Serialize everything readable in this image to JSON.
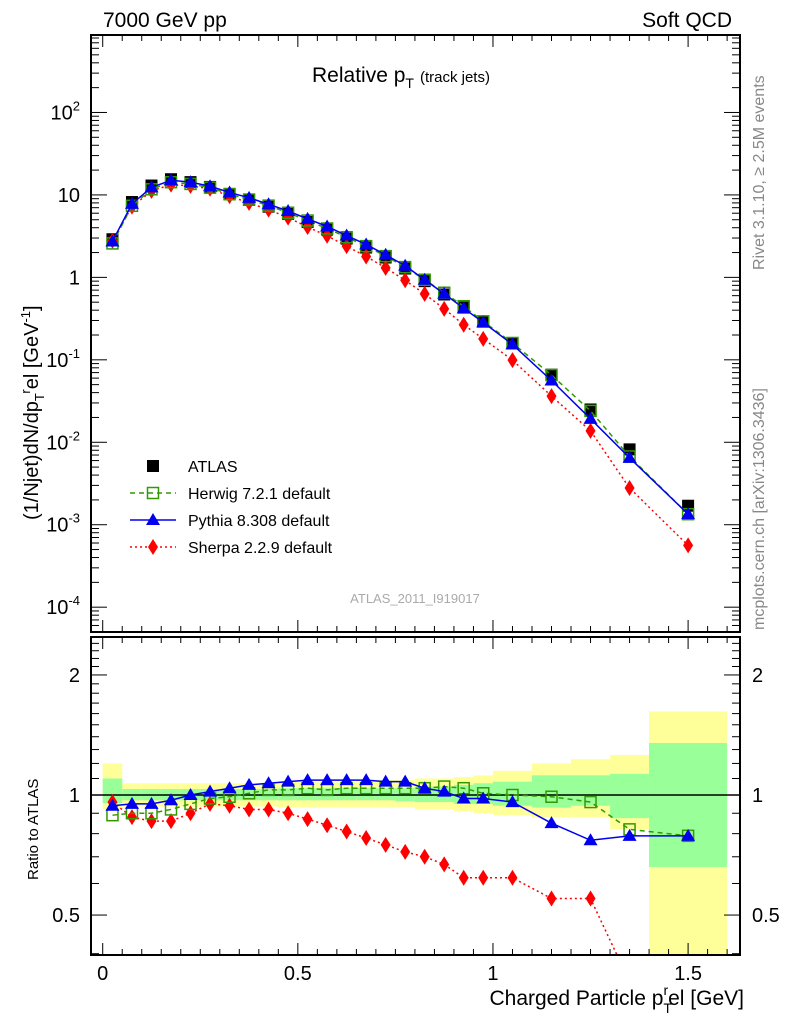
{
  "header": {
    "left": "7000 GeV pp",
    "right": "Soft QCD"
  },
  "side_text": {
    "top": "Rivet 3.1.10, ≥ 2.5M events",
    "bottom": "mcplots.cern.ch [arXiv:1306.3436]"
  },
  "watermark": "ATLAS_2011_I919017",
  "chart_data": [
    {
      "type": "line",
      "title": "Relative p_T (track jets)",
      "title_main": "Relative p",
      "title_sub": "T",
      "title_note": "(track jets)",
      "ylabel": "(1/Njet)dN/dp_T^rel [GeV^-1]",
      "yscale": "log",
      "ylim": [
        5e-05,
        870
      ],
      "xlim": [
        -0.03,
        1.633
      ],
      "yticks": [
        {
          "v": 0.0001,
          "base": "10",
          "exp": "-4"
        },
        {
          "v": 0.001,
          "base": "10",
          "exp": "-3"
        },
        {
          "v": 0.01,
          "base": "10",
          "exp": "-2"
        },
        {
          "v": 0.1,
          "base": "10",
          "exp": "-1"
        },
        {
          "v": 1,
          "base": "1",
          "exp": ""
        },
        {
          "v": 10,
          "base": "10",
          "exp": ""
        },
        {
          "v": 100,
          "base": "10",
          "exp": "2"
        }
      ],
      "legend_placement": "center-left",
      "x": [
        0.025,
        0.075,
        0.125,
        0.175,
        0.225,
        0.275,
        0.325,
        0.375,
        0.425,
        0.475,
        0.525,
        0.575,
        0.625,
        0.675,
        0.725,
        0.775,
        0.825,
        0.875,
        0.925,
        0.975,
        1.05,
        1.15,
        1.25,
        1.35,
        1.5
      ],
      "series": [
        {
          "name": "ATLAS",
          "color": "#000000",
          "marker": "square",
          "values": [
            2.9,
            8.2,
            13,
            15.5,
            14.3,
            12.5,
            10.3,
            8.7,
            7.2,
            5.9,
            4.7,
            3.8,
            2.95,
            2.3,
            1.74,
            1.28,
            0.9,
            0.62,
            0.43,
            0.29,
            0.16,
            0.066,
            0.025,
            0.0082,
            0.0017
          ]
        },
        {
          "name": "Herwig 7.2.1 default",
          "color": "#339900",
          "marker": "open-square",
          "dash": "5,4",
          "ratio": [
            0.89,
            0.9,
            0.9,
            0.92,
            0.95,
            0.98,
            0.99,
            1.01,
            1.03,
            1.03,
            1.04,
            1.03,
            1.04,
            1.04,
            1.04,
            1.04,
            1.04,
            1.05,
            1.04,
            1.01,
            1.0,
            0.99,
            0.96,
            0.82,
            0.79
          ]
        },
        {
          "name": "Pythia 8.308 default",
          "color": "#0000ee",
          "marker": "triangle",
          "dash": "",
          "ratio": [
            0.94,
            0.95,
            0.95,
            0.97,
            1.0,
            1.02,
            1.04,
            1.06,
            1.07,
            1.08,
            1.09,
            1.09,
            1.09,
            1.09,
            1.08,
            1.08,
            1.04,
            1.02,
            0.98,
            0.98,
            0.96,
            0.85,
            0.77,
            0.79,
            0.79
          ]
        },
        {
          "name": "Sherpa 2.2.9 default",
          "color": "#ff0000",
          "marker": "diamond",
          "dash": "2,3",
          "ratio": [
            0.96,
            0.88,
            0.86,
            0.86,
            0.9,
            0.95,
            0.94,
            0.92,
            0.92,
            0.9,
            0.87,
            0.84,
            0.81,
            0.78,
            0.75,
            0.72,
            0.7,
            0.67,
            0.62,
            0.62,
            0.62,
            0.55,
            0.55,
            0.34,
            0.33
          ]
        }
      ]
    },
    {
      "type": "line",
      "ylabel": "Ratio to ATLAS",
      "yscale": "log",
      "ylim": [
        0.397,
        2.49
      ],
      "yticks": [
        {
          "v": 0.5,
          "label": "0.5"
        },
        {
          "v": 1,
          "label": "1"
        },
        {
          "v": 2,
          "label": "2"
        }
      ],
      "xlabel": "Charged Particle p_T^rel [GeV]",
      "xlabel_main": "Charged Particle p",
      "xlabel_sub": "T",
      "xlabel_sup": "r",
      "xlabel_end": "el [GeV]",
      "xticks": [
        {
          "v": 0,
          "label": "0"
        },
        {
          "v": 0.5,
          "label": "0.5"
        },
        {
          "v": 1,
          "label": "1"
        },
        {
          "v": 1.5,
          "label": "1.5"
        }
      ],
      "bin_edges": [
        0,
        0.05,
        0.1,
        0.15,
        0.2,
        0.25,
        0.3,
        0.35,
        0.4,
        0.45,
        0.5,
        0.55,
        0.6,
        0.65,
        0.7,
        0.75,
        0.8,
        0.85,
        0.9,
        0.95,
        1.0,
        1.1,
        1.2,
        1.3,
        1.4,
        1.6
      ],
      "band_total": {
        "color": "#ffff99",
        "hi": [
          1.2,
          1.07,
          1.07,
          1.07,
          1.07,
          1.07,
          1.07,
          1.07,
          1.07,
          1.08,
          1.08,
          1.08,
          1.08,
          1.08,
          1.09,
          1.09,
          1.1,
          1.1,
          1.11,
          1.12,
          1.15,
          1.2,
          1.23,
          1.26,
          1.62
        ],
        "lo": [
          0.92,
          0.935,
          0.935,
          0.935,
          0.935,
          0.935,
          0.935,
          0.935,
          0.935,
          0.93,
          0.93,
          0.93,
          0.93,
          0.93,
          0.93,
          0.93,
          0.92,
          0.92,
          0.91,
          0.9,
          0.89,
          0.88,
          0.88,
          0.82,
          0.3
        ]
      },
      "band_stat": {
        "color": "#99ff99",
        "hi": [
          1.1,
          1.035,
          1.035,
          1.035,
          1.035,
          1.035,
          1.035,
          1.035,
          1.035,
          1.04,
          1.04,
          1.04,
          1.04,
          1.04,
          1.04,
          1.04,
          1.05,
          1.05,
          1.06,
          1.07,
          1.08,
          1.12,
          1.12,
          1.13,
          1.35
        ],
        "lo": [
          0.955,
          0.97,
          0.97,
          0.97,
          0.97,
          0.97,
          0.97,
          0.97,
          0.97,
          0.97,
          0.97,
          0.97,
          0.97,
          0.97,
          0.97,
          0.965,
          0.96,
          0.96,
          0.95,
          0.95,
          0.94,
          0.93,
          0.94,
          0.875,
          0.66
        ]
      }
    }
  ]
}
